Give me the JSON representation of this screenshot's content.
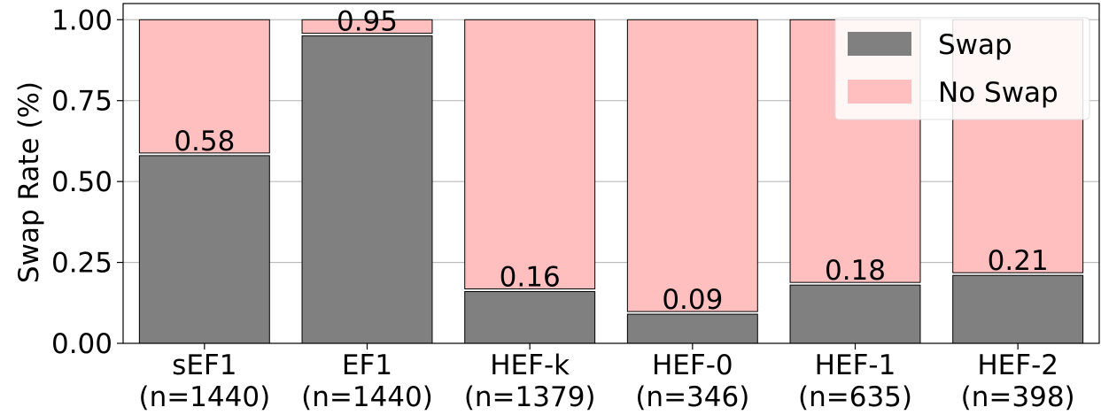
{
  "chart_data": {
    "type": "bar",
    "stacked": true,
    "categories": [
      "sEF1",
      "EF1",
      "HEF-k",
      "HEF-0",
      "HEF-1",
      "HEF-2"
    ],
    "category_counts": [
      "(n=1440)",
      "(n=1440)",
      "(n=1379)",
      "(n=346)",
      "(n=635)",
      "(n=398)"
    ],
    "series": [
      {
        "name": "Swap",
        "values": [
          0.58,
          0.95,
          0.16,
          0.09,
          0.18,
          0.21
        ],
        "color": "#808080"
      },
      {
        "name": "No Swap",
        "values": [
          0.42,
          0.05,
          0.84,
          0.91,
          0.82,
          0.79
        ],
        "color": "#ffbfbf"
      }
    ],
    "data_labels": [
      "0.58",
      "0.95",
      "0.16",
      "0.09",
      "0.18",
      "0.21"
    ],
    "ylabel": "Swap Rate (%)",
    "xlabel": "",
    "ylim": [
      0,
      1.05
    ],
    "yticks": [
      0.0,
      0.25,
      0.5,
      0.75,
      1.0
    ],
    "ytick_labels": [
      "0.00",
      "0.25",
      "0.50",
      "0.75",
      "1.00"
    ],
    "grid": "horizontal",
    "legend_position": "top-right"
  }
}
